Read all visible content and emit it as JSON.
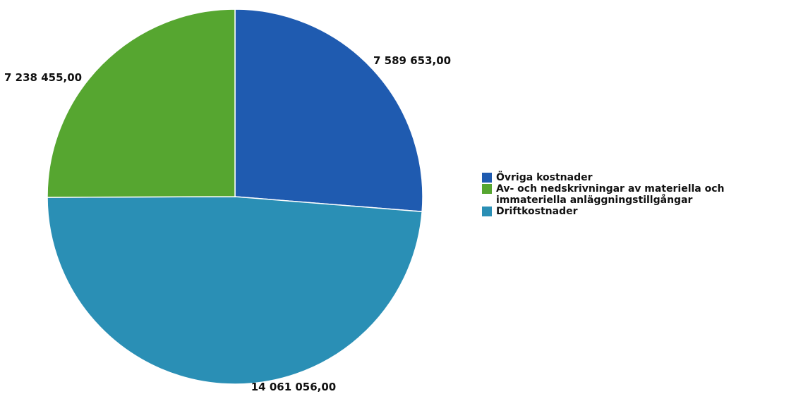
{
  "chart_data": {
    "type": "pie",
    "title": "",
    "slices": [
      {
        "label": "Övriga kostnader",
        "value": 7589653.0,
        "value_label": "7 589 653,00",
        "color": "#1f5bb0"
      },
      {
        "label": "Driftkostnader",
        "value": 14061056.0,
        "value_label": "14 061 056,00",
        "color": "#2a8fb5"
      },
      {
        "label": "Av- och nedskrivningar av materiella och immateriella anläggningstillgångar",
        "value": 7238455.0,
        "value_label": "7 238 455,00",
        "color": "#56a630"
      }
    ],
    "legend": {
      "position": "right",
      "entries": [
        {
          "label": "Övriga kostnader",
          "color": "#1f5bb0"
        },
        {
          "label": "Av- och nedskrivningar av materiella och immateriella anläggningstillgångar",
          "color": "#56a630"
        },
        {
          "label": "Driftkostnader",
          "color": "#2a8fb5"
        }
      ]
    },
    "start_direction": "12 o'clock",
    "direction": "clockwise"
  }
}
